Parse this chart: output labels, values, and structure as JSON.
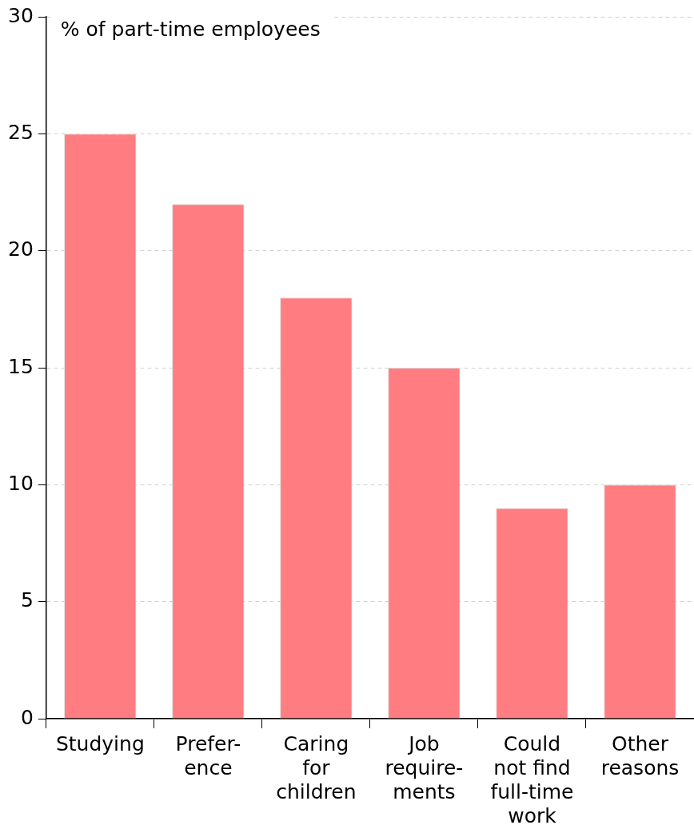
{
  "chart_data": {
    "type": "bar",
    "ylabel": "% of part-time employees",
    "categories": [
      "Studying",
      "Prefer-\nence",
      "Caring\nfor\nchildren",
      "Job\nrequire-\nments",
      "Could\nnot find\nfull-time\nwork",
      "Other\nreasons"
    ],
    "values": [
      25,
      22,
      18,
      15,
      9,
      10
    ],
    "color": "#ff7c80",
    "ylim": [
      0,
      30
    ],
    "yticks": [
      0,
      5,
      10,
      15,
      20,
      25,
      30
    ],
    "grid": "y",
    "legend": false
  }
}
